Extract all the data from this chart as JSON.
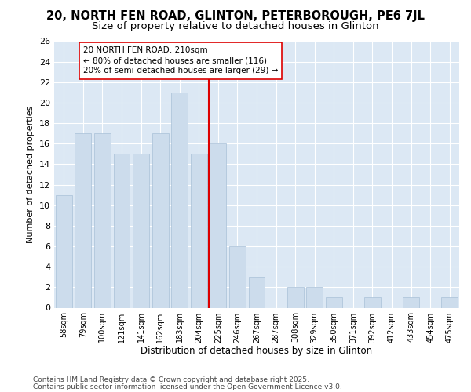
{
  "title1": "20, NORTH FEN ROAD, GLINTON, PETERBOROUGH, PE6 7JL",
  "title2": "Size of property relative to detached houses in Glinton",
  "xlabel": "Distribution of detached houses by size in Glinton",
  "ylabel": "Number of detached properties",
  "categories": [
    "58sqm",
    "79sqm",
    "100sqm",
    "121sqm",
    "141sqm",
    "162sqm",
    "183sqm",
    "204sqm",
    "225sqm",
    "246sqm",
    "267sqm",
    "287sqm",
    "308sqm",
    "329sqm",
    "350sqm",
    "371sqm",
    "392sqm",
    "412sqm",
    "433sqm",
    "454sqm",
    "475sqm"
  ],
  "values": [
    11,
    17,
    17,
    15,
    15,
    17,
    21,
    15,
    16,
    6,
    3,
    0,
    2,
    2,
    1,
    0,
    1,
    0,
    1,
    0,
    1
  ],
  "bar_color": "#ccdcec",
  "bar_edge_color": "#a8c0d8",
  "vline_index": 7,
  "vline_color": "#dd0000",
  "annotation_text": "20 NORTH FEN ROAD: 210sqm\n← 80% of detached houses are smaller (116)\n20% of semi-detached houses are larger (29) →",
  "annotation_box_facecolor": "#ffffff",
  "annotation_box_edgecolor": "#dd0000",
  "ylim": [
    0,
    26
  ],
  "yticks": [
    0,
    2,
    4,
    6,
    8,
    10,
    12,
    14,
    16,
    18,
    20,
    22,
    24,
    26
  ],
  "plot_bg": "#dce8f4",
  "fig_bg": "#ffffff",
  "footer1": "Contains HM Land Registry data © Crown copyright and database right 2025.",
  "footer2": "Contains public sector information licensed under the Open Government Licence v3.0.",
  "title1_fontsize": 10.5,
  "title2_fontsize": 9.5,
  "xlabel_fontsize": 8.5,
  "ylabel_fontsize": 8,
  "ytick_fontsize": 8,
  "xtick_fontsize": 7,
  "annotation_fontsize": 7.5,
  "footer_fontsize": 6.5,
  "grid_color": "#ffffff",
  "bar_linewidth": 0.5
}
